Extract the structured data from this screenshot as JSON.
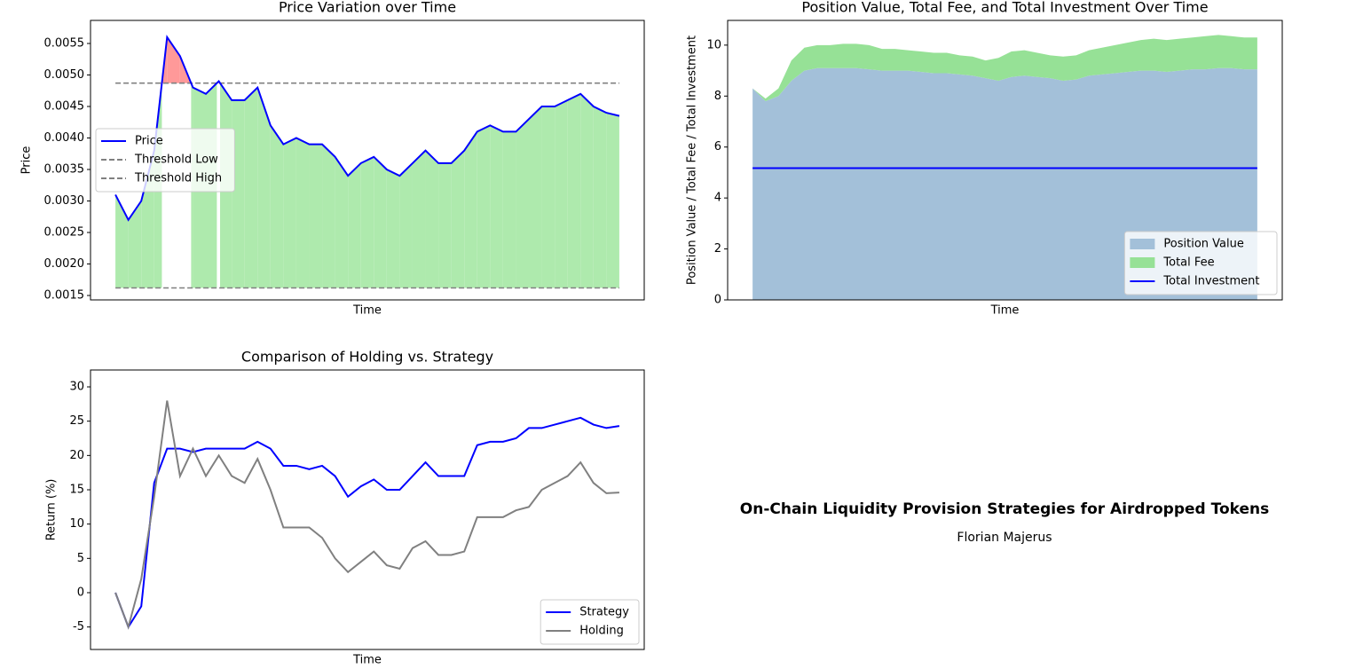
{
  "chart_data": [
    {
      "type": "line",
      "title": "Price Variation over Time",
      "xlabel": "Time",
      "ylabel": "Price",
      "ylim": [
        0.00143,
        0.005866
      ],
      "yticks": [
        0.0015,
        {
          "value": 0.002,
          "label": "0.0020"
        },
        0.0025,
        {
          "value": 0.003,
          "label": "0.0030"
        },
        0.0035,
        {
          "value": 0.004,
          "label": "0.0040"
        },
        0.0045,
        {
          "value": 0.005,
          "label": "0.0050"
        },
        0.0055
      ],
      "series": [
        {
          "name": "Price",
          "color": "#0000ff",
          "values": [
            0.0031,
            0.0027,
            0.003,
            0.0038,
            0.0056,
            0.0053,
            0.0048,
            0.0047,
            0.0049,
            0.0046,
            0.0046,
            0.0048,
            0.0042,
            0.0039,
            0.004,
            0.0039,
            0.0039,
            0.0037,
            0.0034,
            0.0036,
            0.0037,
            0.0035,
            0.0034,
            0.0036,
            0.0038,
            0.0036,
            0.0036,
            0.0038,
            0.0041,
            0.0042,
            0.0041,
            0.0041,
            0.0043,
            0.0045,
            0.0045,
            0.0046,
            0.0047,
            0.0045,
            0.0044,
            0.00435
          ]
        }
      ],
      "hlines": [
        {
          "name": "Threshold Low",
          "value": 0.00162,
          "color": "#808080"
        },
        {
          "name": "Threshold High",
          "value": 0.00487,
          "color": "#808080"
        }
      ],
      "fill_in_range_color": "#aeeaad",
      "fill_above_color": "#ff9999",
      "legend": "center left"
    },
    {
      "type": "area",
      "title": "Position Value, Total Fee, and Total Investment Over Time",
      "xlabel": "Time",
      "ylabel": "Position Value / Total Fee / Total Investment",
      "ylim": [
        0,
        10.97
      ],
      "yticks": [
        0,
        2,
        4,
        6,
        8,
        10
      ],
      "series": [
        {
          "name": "Position Value",
          "color": "#a3c0d9",
          "values": [
            8.3,
            7.8,
            8.0,
            8.6,
            9.0,
            9.1,
            9.1,
            9.1,
            9.1,
            9.05,
            9.0,
            9.0,
            9.0,
            8.95,
            8.9,
            8.9,
            8.85,
            8.8,
            8.7,
            8.6,
            8.75,
            8.8,
            8.75,
            8.7,
            8.6,
            8.65,
            8.8,
            8.85,
            8.9,
            8.95,
            9.0,
            9.0,
            8.95,
            9.0,
            9.05,
            9.05,
            9.1,
            9.1,
            9.05,
            9.05
          ]
        },
        {
          "name": "Total Fee",
          "color": "#96e196",
          "values": [
            0,
            0.1,
            0.3,
            0.8,
            0.9,
            0.9,
            0.9,
            0.95,
            0.95,
            0.95,
            0.85,
            0.85,
            0.8,
            0.8,
            0.8,
            0.8,
            0.75,
            0.75,
            0.7,
            0.9,
            1.0,
            1.0,
            0.95,
            0.9,
            0.95,
            0.95,
            1.0,
            1.05,
            1.1,
            1.15,
            1.2,
            1.25,
            1.25,
            1.25,
            1.25,
            1.3,
            1.3,
            1.25,
            1.25,
            1.25
          ]
        }
      ],
      "hlines": [
        {
          "name": "Total Investment",
          "value": 5.17,
          "color": "#0000ff"
        }
      ],
      "legend": "lower right"
    },
    {
      "type": "line",
      "title": "Comparison of Holding vs. Strategy",
      "xlabel": "Time",
      "ylabel": "Return (%)",
      "ylim": [
        -8.28,
        32.46
      ],
      "yticks": [
        -5,
        0,
        5,
        10,
        15,
        20,
        25,
        30
      ],
      "series": [
        {
          "name": "Strategy",
          "color": "#0000ff",
          "values": [
            0,
            -5,
            -2,
            16,
            21,
            21,
            20.5,
            21,
            21,
            21,
            21,
            22,
            21,
            18.5,
            18.5,
            18,
            18.5,
            17,
            14,
            15.5,
            16.5,
            15,
            15,
            17,
            19,
            17,
            17,
            17,
            21.5,
            22,
            22,
            22.5,
            24,
            24,
            24.5,
            25,
            25.5,
            24.5,
            24,
            24.3
          ]
        },
        {
          "name": "Holding",
          "color": "#808080",
          "values": [
            0,
            -5,
            2,
            14,
            28,
            17,
            21,
            17,
            20,
            17,
            16,
            19.5,
            15,
            9.5,
            9.5,
            9.5,
            8,
            5,
            3,
            4.5,
            6,
            4,
            3.5,
            6.5,
            7.5,
            5.5,
            5.5,
            6,
            11,
            11,
            11,
            12,
            12.5,
            15,
            16,
            17,
            19,
            16,
            14.5,
            14.6
          ]
        }
      ],
      "hlines": [],
      "legend": "lower right"
    }
  ],
  "caption": {
    "title": "On-Chain Liquidity Provision Strategies for Airdropped Tokens",
    "author": "Florian Majerus"
  }
}
